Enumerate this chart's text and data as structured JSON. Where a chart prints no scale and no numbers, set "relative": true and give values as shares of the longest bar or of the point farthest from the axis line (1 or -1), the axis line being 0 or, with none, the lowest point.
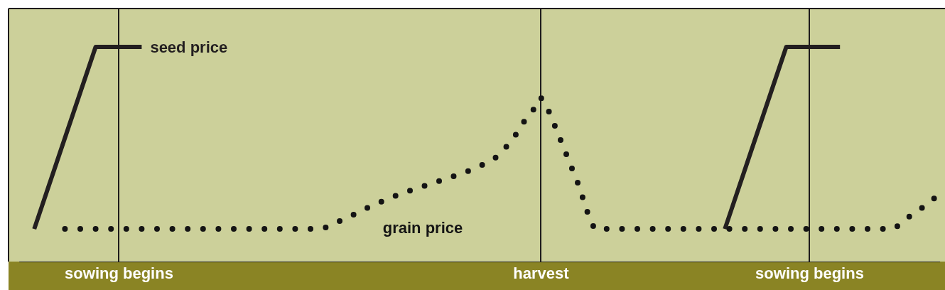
{
  "chart_data": {
    "type": "line",
    "relative": true,
    "grid": "x",
    "categories": [
      null,
      null,
      null,
      null,
      null,
      null,
      null,
      null,
      null,
      null,
      null,
      null,
      null,
      "sowing begins",
      null,
      null,
      null,
      null,
      null,
      null,
      null,
      null,
      null,
      null,
      null,
      null,
      null,
      null,
      null,
      null,
      null,
      null,
      null,
      null,
      null,
      null,
      null,
      null,
      null,
      null,
      null,
      null,
      null,
      null,
      null,
      null,
      null,
      null,
      null,
      null,
      null,
      null,
      null,
      null,
      null,
      null,
      null,
      null,
      null,
      null,
      null,
      null,
      null,
      null,
      null,
      null,
      null,
      null,
      "harvest",
      null,
      null,
      null,
      null,
      null,
      null,
      null,
      null,
      null,
      null,
      null,
      null,
      null,
      null,
      null,
      null,
      null,
      null,
      null,
      null,
      null,
      null,
      null,
      null,
      null,
      null,
      null,
      null,
      null,
      null,
      null,
      null,
      null,
      null,
      "sowing begins",
      null,
      null,
      null,
      null,
      null,
      null,
      null,
      null,
      null,
      null,
      null,
      null,
      null,
      null,
      null,
      null,
      null
    ],
    "series": [
      {
        "name": "seed price",
        "color": "#231f20",
        "line_style": "solid",
        "values": [
          null,
          null,
          0.152,
          0.258,
          0.364,
          0.47,
          0.576,
          0.682,
          0.788,
          0.894,
          1,
          1,
          1,
          1,
          1,
          1,
          1,
          null,
          null,
          null,
          null,
          null,
          null,
          null,
          null,
          null,
          null,
          null,
          null,
          null,
          null,
          null,
          null,
          null,
          null,
          null,
          null,
          null,
          null,
          null,
          null,
          null,
          null,
          null,
          null,
          null,
          null,
          null,
          null,
          null,
          null,
          null,
          null,
          null,
          null,
          null,
          null,
          null,
          null,
          null,
          null,
          null,
          null,
          null,
          null,
          null,
          null,
          null,
          null,
          null,
          null,
          null,
          null,
          null,
          null,
          null,
          null,
          null,
          null,
          null,
          null,
          null,
          null,
          null,
          null,
          null,
          null,
          null,
          null,
          null,
          null,
          null,
          0.152,
          0.258,
          0.364,
          0.47,
          0.576,
          0.682,
          0.788,
          0.894,
          1,
          1,
          1,
          1,
          1,
          1,
          1,
          1,
          null,
          null,
          null,
          null,
          null,
          null,
          null,
          null,
          null,
          null,
          null,
          null,
          null
        ]
      },
      {
        "name": "grain price",
        "color": "#141414",
        "line_style": "dotted",
        "values": [
          null,
          null,
          null,
          null,
          null,
          null,
          0.152,
          0.152,
          0.152,
          0.152,
          0.152,
          0.152,
          0.152,
          0.152,
          0.152,
          0.152,
          0.152,
          0.152,
          0.152,
          0.152,
          0.152,
          0.152,
          0.152,
          0.152,
          0.152,
          0.152,
          0.152,
          0.152,
          0.152,
          0.152,
          0.152,
          0.152,
          0.152,
          0.152,
          0.152,
          0.152,
          0.152,
          0.152,
          0.152,
          0.152,
          0.159,
          0.175,
          0.192,
          0.209,
          0.225,
          0.242,
          0.262,
          0.275,
          0.291,
          0.305,
          0.318,
          0.331,
          0.344,
          0.354,
          0.368,
          0.377,
          0.391,
          0.401,
          0.414,
          0.427,
          0.444,
          0.46,
          0.48,
          0.513,
          0.556,
          0.603,
          0.662,
          0.705,
          0.765,
          0.705,
          0.619,
          0.53,
          0.44,
          0.351,
          0.238,
          0.152,
          0.152,
          0.152,
          0.152,
          0.152,
          0.152,
          0.152,
          0.152,
          0.152,
          0.152,
          0.152,
          0.152,
          0.152,
          0.152,
          0.152,
          0.152,
          0.152,
          0.152,
          0.152,
          0.152,
          0.152,
          0.152,
          0.152,
          0.152,
          0.152,
          0.152,
          0.152,
          0.152,
          0.152,
          0.152,
          0.152,
          0.152,
          0.152,
          0.152,
          0.152,
          0.152,
          0.152,
          0.152,
          0.152,
          0.152,
          0.179,
          0.209,
          0.232,
          0.258,
          0.285,
          0.318
        ]
      }
    ]
  }
}
